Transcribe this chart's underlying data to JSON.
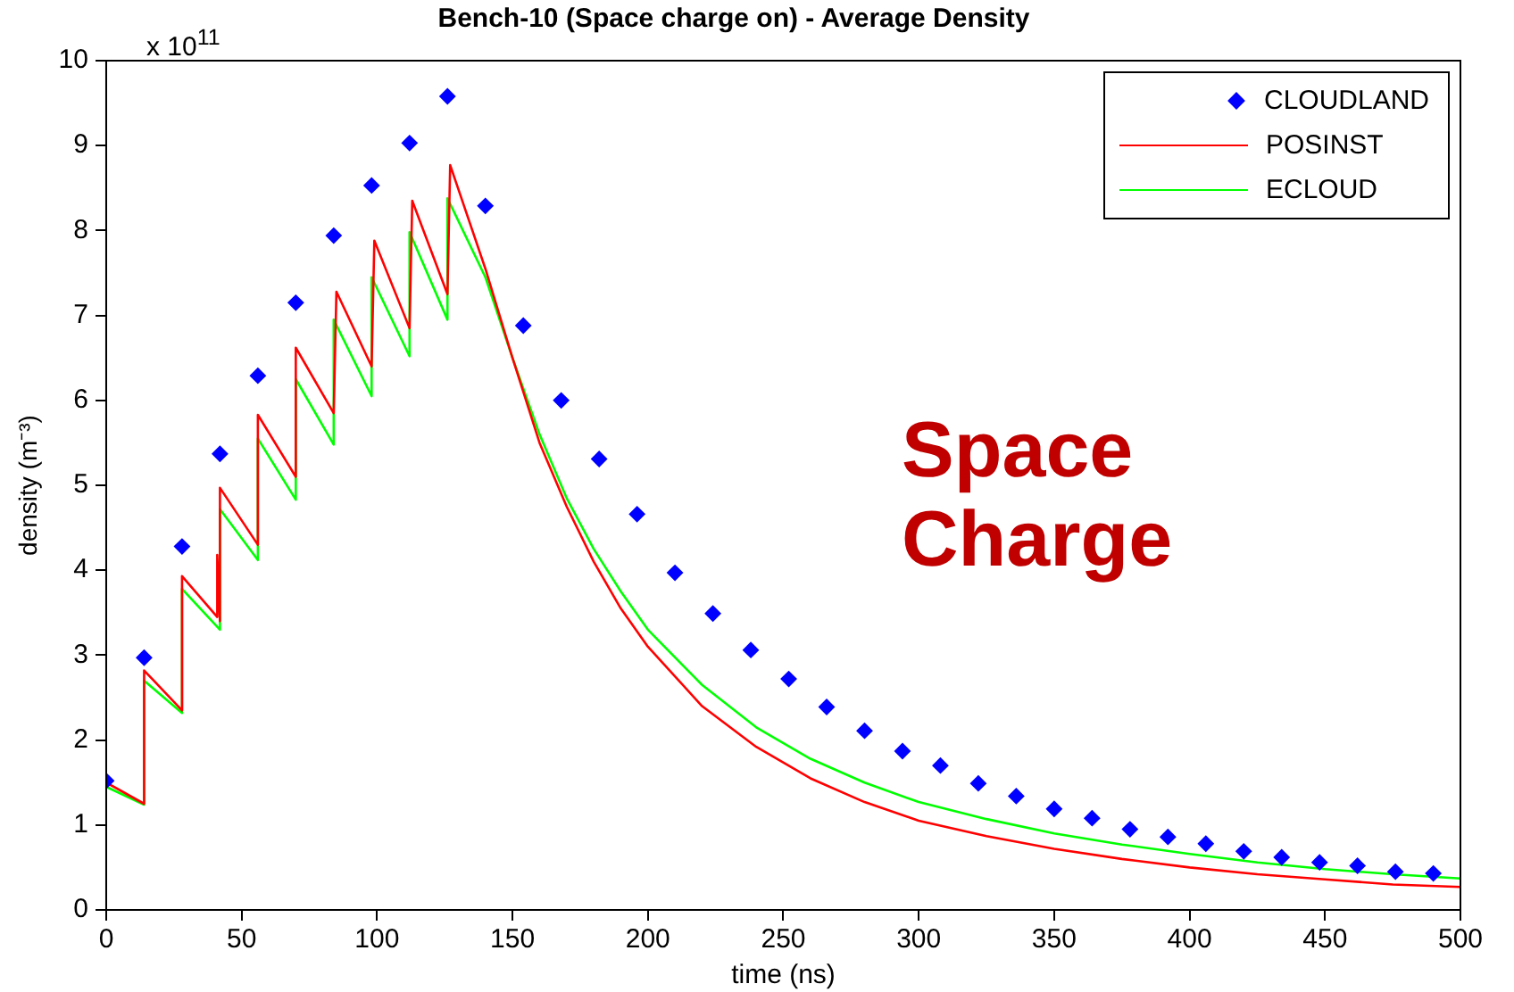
{
  "chart_data": {
    "type": "line",
    "title": "Bench-10 (Space charge on) - Average Density",
    "xlabel": "time (ns)",
    "ylabel": "density (m⁻³)",
    "xlim": [
      0,
      500
    ],
    "xticks": [
      0,
      50,
      100,
      150,
      200,
      250,
      300,
      350,
      400,
      450,
      500
    ],
    "ylim": [
      0,
      10
    ],
    "yticks": [
      0,
      1,
      2,
      3,
      4,
      5,
      6,
      7,
      8,
      9,
      10
    ],
    "grid": false,
    "legend": "top right",
    "annotations": [
      "x 10$^{11}$",
      "Space Charge"
    ],
    "series": [
      {
        "name": "CLOUDLAND",
        "type": "scatter",
        "marker": "diamond",
        "color": "#0000ff",
        "x": [
          0,
          14,
          28,
          42,
          56,
          70,
          84,
          98,
          112,
          126,
          140,
          154,
          168,
          182,
          196,
          210,
          224,
          238,
          252,
          266,
          280,
          294,
          308,
          322,
          336,
          350,
          364,
          378,
          392,
          406,
          420,
          434,
          448,
          462,
          476,
          490
        ],
        "values": [
          1.52,
          2.97,
          4.28,
          5.37,
          6.29,
          7.15,
          7.94,
          8.53,
          9.03,
          9.58,
          8.29,
          6.88,
          6.0,
          5.31,
          4.66,
          3.97,
          3.49,
          3.06,
          2.72,
          2.39,
          2.11,
          1.87,
          1.7,
          1.49,
          1.34,
          1.19,
          1.08,
          0.95,
          0.86,
          0.78,
          0.69,
          0.62,
          0.56,
          0.52,
          0.45,
          0.43
        ]
      },
      {
        "name": "POSINST",
        "marker": "none",
        "line_style": "solid",
        "color": "#ff0000",
        "x": [
          0,
          14,
          14,
          28,
          28,
          41,
          41,
          42,
          42,
          56,
          56,
          70,
          70,
          84,
          85,
          98,
          99,
          112,
          113,
          126,
          127,
          140,
          150,
          160,
          170,
          180,
          190,
          200,
          220,
          240,
          260,
          280,
          300,
          325,
          350,
          375,
          400,
          425,
          450,
          475,
          500
        ],
        "values": [
          1.5,
          1.25,
          2.82,
          2.35,
          3.93,
          3.45,
          4.18,
          3.4,
          4.97,
          4.3,
          5.83,
          5.1,
          6.62,
          5.85,
          7.28,
          6.4,
          7.88,
          6.85,
          8.35,
          7.25,
          8.77,
          7.55,
          6.5,
          5.5,
          4.75,
          4.1,
          3.55,
          3.1,
          2.4,
          1.92,
          1.55,
          1.27,
          1.05,
          0.87,
          0.72,
          0.6,
          0.5,
          0.42,
          0.36,
          0.3,
          0.27
        ]
      },
      {
        "name": "ECLOUD",
        "marker": "none",
        "line_style": "solid",
        "color": "#00ff00",
        "x": [
          0,
          14,
          14,
          28,
          28,
          42,
          42,
          56,
          56,
          70,
          70,
          84,
          84,
          98,
          98,
          112,
          112,
          126,
          126,
          140,
          150,
          160,
          170,
          180,
          190,
          200,
          220,
          240,
          260,
          280,
          300,
          325,
          350,
          375,
          400,
          425,
          450,
          475,
          500
        ],
        "values": [
          1.45,
          1.24,
          2.7,
          2.32,
          3.78,
          3.3,
          4.72,
          4.12,
          5.55,
          4.83,
          6.25,
          5.48,
          6.95,
          6.05,
          7.45,
          6.52,
          7.98,
          6.95,
          8.38,
          7.45,
          6.5,
          5.6,
          4.85,
          4.25,
          3.75,
          3.3,
          2.65,
          2.15,
          1.78,
          1.5,
          1.27,
          1.07,
          0.9,
          0.77,
          0.66,
          0.56,
          0.48,
          0.42,
          0.37
        ]
      }
    ]
  }
}
